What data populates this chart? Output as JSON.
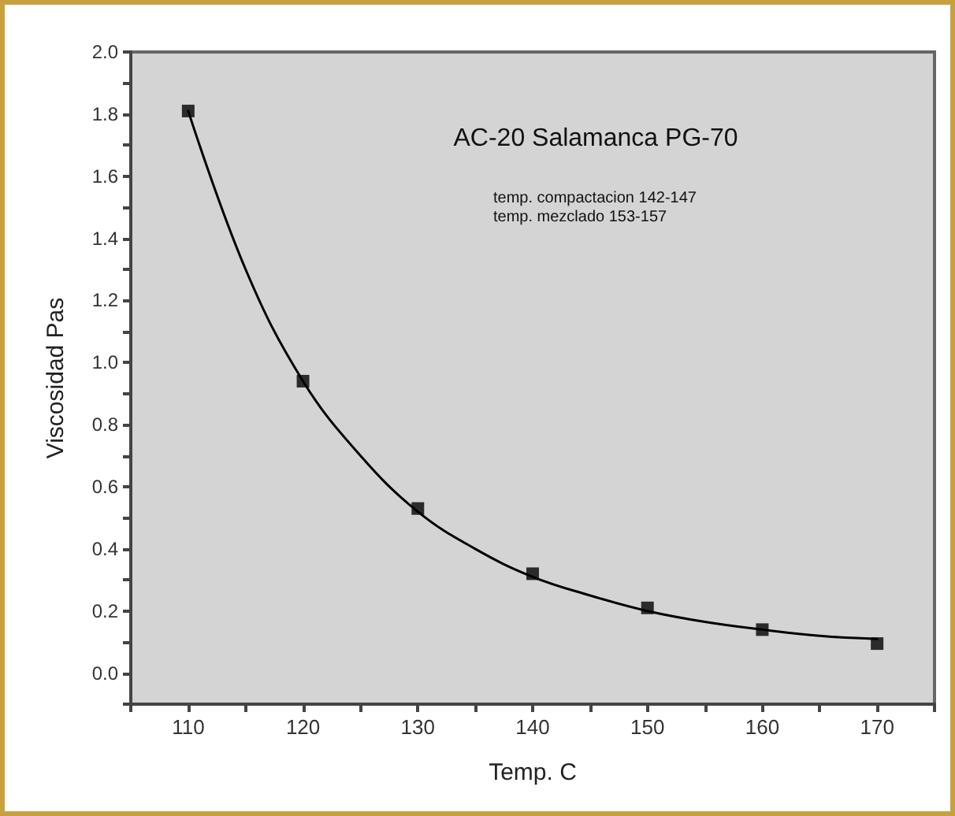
{
  "chart_data": {
    "type": "scatter",
    "title": "AC-20 Salamanca PG-70",
    "xlabel": "Temp. C",
    "ylabel": "Viscosidad Pas",
    "annotations": [
      "temp. compactacion 142-147",
      "temp. mezclado 153-157"
    ],
    "x": [
      110,
      120,
      130,
      140,
      150,
      160,
      170
    ],
    "series": [
      {
        "color": "#000000",
        "marker": "square",
        "values": [
          1.81,
          0.94,
          0.53,
          0.32,
          0.21,
          0.14,
          0.095
        ]
      },
      {
        "type": "line",
        "color": "#000000",
        "marker": "none",
        "line_style": "solid",
        "x": [
          110,
          115,
          120,
          125,
          130,
          135,
          140,
          145,
          150,
          155,
          160,
          165,
          170
        ],
        "values": [
          1.81,
          1.3,
          0.94,
          0.7,
          0.52,
          0.4,
          0.31,
          0.25,
          0.2,
          0.165,
          0.14,
          0.12,
          0.11
        ]
      }
    ],
    "xlim": [
      105,
      175
    ],
    "xticks": [
      {
        "value": 105,
        "label": null
      },
      110,
      {
        "value": 115,
        "label": null
      },
      120,
      {
        "value": 125,
        "label": null
      },
      130,
      {
        "value": 135,
        "label": null
      },
      140,
      {
        "value": 145,
        "label": null
      },
      150,
      {
        "value": 155,
        "label": null
      },
      160,
      {
        "value": 165,
        "label": null
      },
      170,
      {
        "value": 175,
        "label": null
      }
    ],
    "ylim": [
      -0.1,
      2.0
    ],
    "yticks": [
      {
        "value": -0.1,
        "label": null
      },
      {
        "value": 0,
        "label": "0.0"
      },
      {
        "value": 0.1,
        "label": null
      },
      0.2,
      {
        "value": 0.3,
        "label": null
      },
      0.4,
      {
        "value": 0.5,
        "label": null
      },
      0.6,
      {
        "value": 0.7,
        "label": null
      },
      0.8,
      {
        "value": 0.9,
        "label": null
      },
      {
        "value": 1,
        "label": "1.0"
      },
      {
        "value": 1.1,
        "label": null
      },
      1.2,
      {
        "value": 1.3,
        "label": null
      },
      1.4,
      {
        "value": 1.5,
        "label": null
      },
      1.6,
      {
        "value": 1.7,
        "label": null
      },
      1.8,
      {
        "value": 1.9,
        "label": null
      },
      {
        "value": 2,
        "label": "2.0"
      }
    ],
    "grid": false
  }
}
